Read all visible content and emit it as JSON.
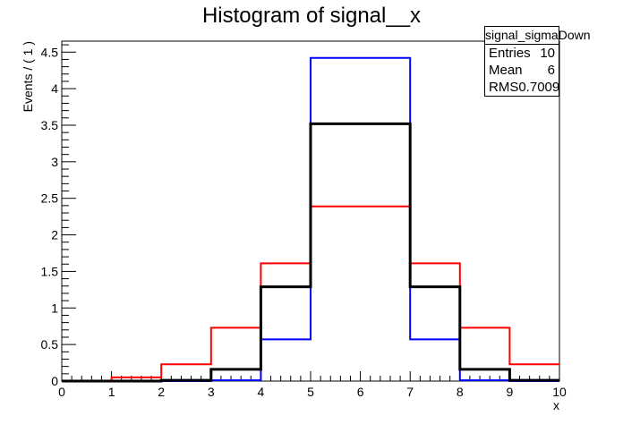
{
  "chart_data": {
    "type": "histogram",
    "title": "Histogram of signal__x",
    "xlabel": "x",
    "ylabel": "Events / ( 1 )",
    "xlim": [
      0,
      10
    ],
    "ylim": [
      0,
      4.65
    ],
    "bin_edges": [
      0,
      1,
      2,
      3,
      4,
      5,
      6,
      7,
      8,
      9,
      10
    ],
    "x_ticks": [
      "0",
      "1",
      "2",
      "3",
      "4",
      "5",
      "6",
      "7",
      "8",
      "9",
      "10"
    ],
    "y_ticks": [
      {
        "v": 0,
        "label": "0"
      },
      {
        "v": 0.5,
        "label": "0.5"
      },
      {
        "v": 1,
        "label": "1"
      },
      {
        "v": 1.5,
        "label": "1.5"
      },
      {
        "v": 2,
        "label": "2"
      },
      {
        "v": 2.5,
        "label": "2.5"
      },
      {
        "v": 3,
        "label": "3"
      },
      {
        "v": 3.5,
        "label": "3.5"
      },
      {
        "v": 4,
        "label": "4"
      },
      {
        "v": 4.5,
        "label": "4.5"
      }
    ],
    "series": [
      {
        "color": "#ff0000",
        "values": [
          0,
          0.05,
          0.23,
          0.73,
          1.61,
          2.39,
          2.39,
          1.61,
          0.73,
          0.23
        ]
      },
      {
        "color": "#0000ff",
        "values": [
          0,
          0,
          0,
          0.01,
          0.57,
          4.42,
          4.42,
          0.57,
          0.01,
          0
        ]
      },
      {
        "color": "#000000",
        "values": [
          0,
          0,
          0.01,
          0.16,
          1.29,
          3.52,
          3.52,
          1.29,
          0.16,
          0.01
        ]
      }
    ]
  },
  "stats": {
    "name": "signal_sigmaDown",
    "rows": [
      {
        "label": "Entries",
        "value": "10"
      },
      {
        "label": "Mean",
        "value": "6"
      },
      {
        "label": "RMS",
        "value": "0.7009"
      }
    ]
  }
}
